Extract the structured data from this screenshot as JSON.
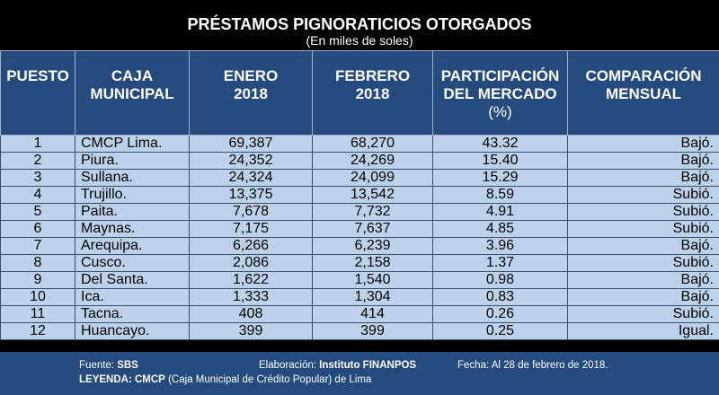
{
  "title": "PRÉSTAMOS PIGNORATICIOS OTORGADOS",
  "subtitle": "(En miles de soles)",
  "headers": {
    "puesto": "PUESTO",
    "caja_l1": "CAJA",
    "caja_l2": "MUNICIPAL",
    "enero_l1": "ENERO",
    "enero_l2": "2018",
    "febrero_l1": "FEBRERO",
    "febrero_l2": "2018",
    "part_l1": "PARTICIPACIÓN",
    "part_l2": "DEL MERCADO",
    "part_l3": "(%)",
    "comp_l1": "COMPARACIÓN",
    "comp_l2": "MENSUAL"
  },
  "rows": [
    {
      "puesto": "1",
      "caja": "CMCP Lima.",
      "enero": "69,387",
      "febrero": "68,270",
      "part": "43.32",
      "comp": "Bajó."
    },
    {
      "puesto": "2",
      "caja": "Piura.",
      "enero": "24,352",
      "febrero": "24,269",
      "part": "15.40",
      "comp": "Bajó."
    },
    {
      "puesto": "3",
      "caja": "Sullana.",
      "enero": "24,324",
      "febrero": "24,099",
      "part": "15.29",
      "comp": "Bajó."
    },
    {
      "puesto": "4",
      "caja": "Trujillo.",
      "enero": "13,375",
      "febrero": "13,542",
      "part": "8.59",
      "comp": "Subió."
    },
    {
      "puesto": "5",
      "caja": "Paita.",
      "enero": "7,678",
      "febrero": "7,732",
      "part": "4.91",
      "comp": "Subió."
    },
    {
      "puesto": "6",
      "caja": "Maynas.",
      "enero": "7,175",
      "febrero": "7,637",
      "part": "4.85",
      "comp": "Subió."
    },
    {
      "puesto": "7",
      "caja": "Arequipa.",
      "enero": "6,266",
      "febrero": "6,239",
      "part": "3.96",
      "comp": "Bajó."
    },
    {
      "puesto": "8",
      "caja": "Cusco.",
      "enero": "2,086",
      "febrero": "2,158",
      "part": "1.37",
      "comp": "Subió."
    },
    {
      "puesto": "9",
      "caja": "Del Santa.",
      "enero": "1,622",
      "febrero": "1,540",
      "part": "0.98",
      "comp": "Bajó."
    },
    {
      "puesto": "10",
      "caja": "Ica.",
      "enero": "1,333",
      "febrero": "1,304",
      "part": "0.83",
      "comp": "Bajó."
    },
    {
      "puesto": "11",
      "caja": "Tacna.",
      "enero": "408",
      "febrero": "414",
      "part": "0.26",
      "comp": "Subió."
    },
    {
      "puesto": "12",
      "caja": "Huancayo.",
      "enero": "399",
      "febrero": "399",
      "part": "0.25",
      "comp": "Igual."
    }
  ],
  "footer": {
    "fuente_label": "Fuente:",
    "fuente_value": "SBS",
    "elab_label": "Elaboración:",
    "elab_value": "Instituto FINANPOS",
    "fecha": "Fecha: Al 28 de febrero de 2018.",
    "leyenda_label": "LEYENDA:",
    "leyenda_abbr": "CMCP",
    "leyenda_text": "(Caja Municipal de Crédito Popular) de Lima"
  },
  "colors": {
    "header_bg": "#254a7e",
    "row_bg": "#bcd2ea",
    "background": "#000000"
  }
}
